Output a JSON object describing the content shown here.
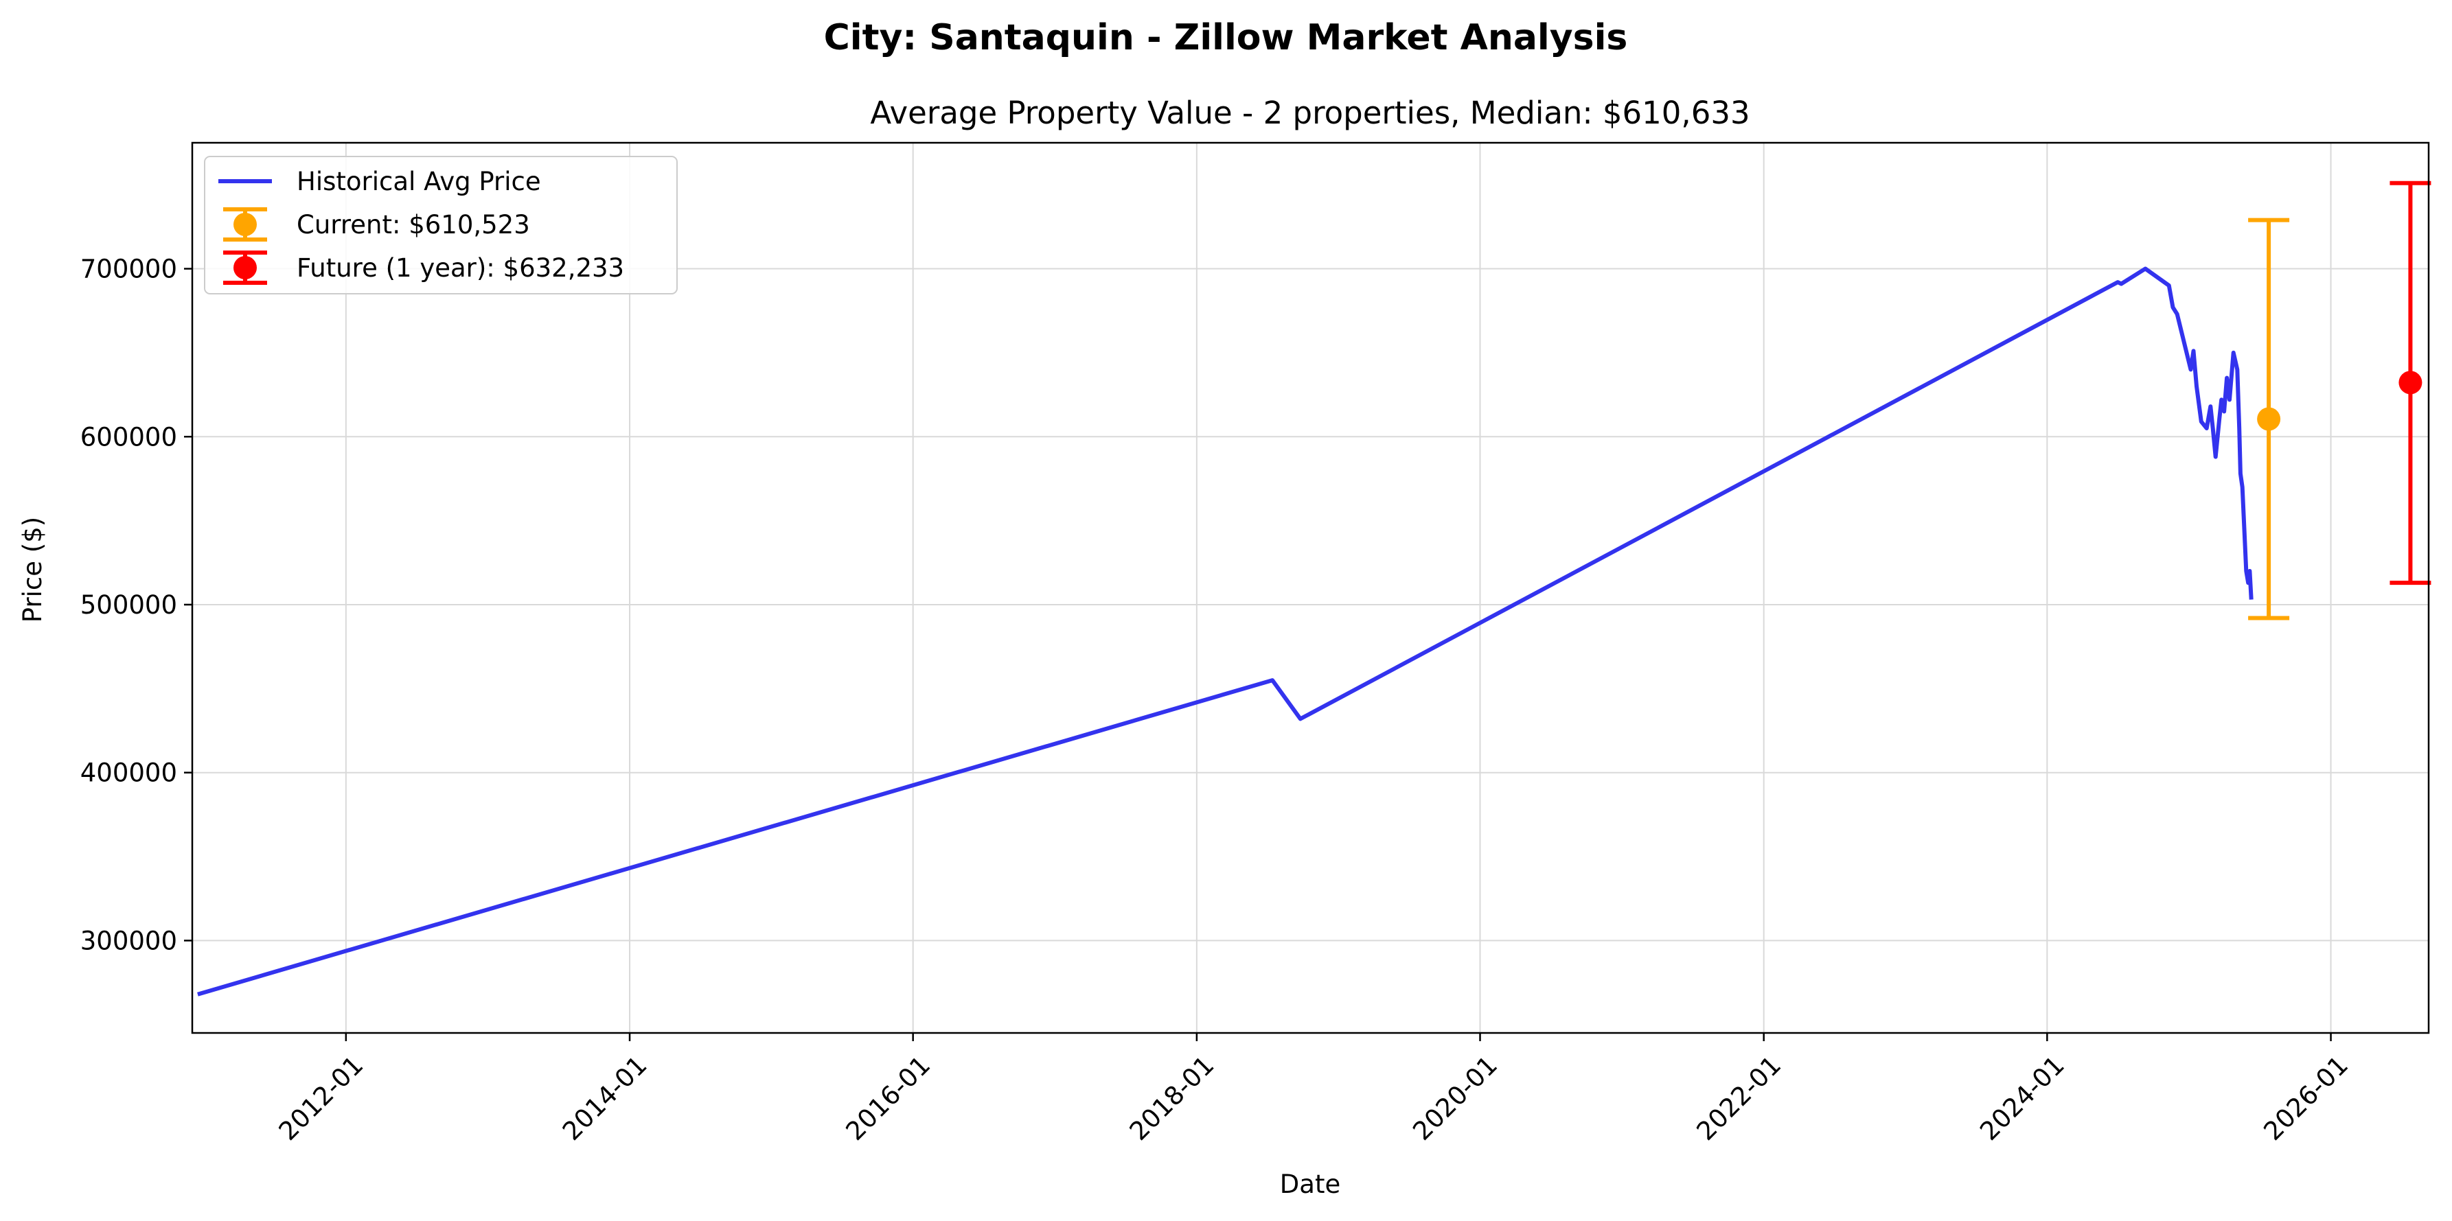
{
  "figure": {
    "suptitle": "City: Santaquin - Zillow Market Analysis"
  },
  "chart_data": {
    "type": "line",
    "title": "Average Property Value - 2 properties, Median: $610,633",
    "xlabel": "Date",
    "ylabel": "Price ($)",
    "x_axis": {
      "type": "date",
      "range": [
        "2010-12-01",
        "2026-09-10"
      ],
      "ticks": [
        "2012-01-01",
        "2014-01-01",
        "2016-01-01",
        "2018-01-01",
        "2020-01-01",
        "2022-01-01",
        "2024-01-01",
        "2026-01-01"
      ],
      "tick_labels": [
        "2012-01",
        "2014-01",
        "2016-01",
        "2018-01",
        "2020-01",
        "2022-01",
        "2024-01",
        "2026-01"
      ]
    },
    "y_axis": {
      "range": [
        245000,
        775000
      ],
      "ticks": [
        300000,
        400000,
        500000,
        600000,
        700000
      ],
      "tick_labels": [
        "300000",
        "400000",
        "500000",
        "600000",
        "700000"
      ]
    },
    "grid": true,
    "legend_position": "top-left",
    "series": [
      {
        "name": "Historical Avg Price",
        "kind": "line",
        "color": "#3333ee",
        "points": [
          {
            "x": "2010-12-15",
            "y": 268000
          },
          {
            "x": "2018-07-15",
            "y": 455000
          },
          {
            "x": "2018-09-25",
            "y": 432000
          },
          {
            "x": "2024-07-01",
            "y": 692000
          },
          {
            "x": "2024-07-10",
            "y": 691000
          },
          {
            "x": "2024-09-10",
            "y": 700000
          },
          {
            "x": "2024-11-10",
            "y": 690000
          },
          {
            "x": "2024-11-20",
            "y": 677000
          },
          {
            "x": "2024-12-01",
            "y": 673000
          },
          {
            "x": "2025-01-05",
            "y": 640000
          },
          {
            "x": "2025-01-12",
            "y": 651000
          },
          {
            "x": "2025-01-20",
            "y": 630000
          },
          {
            "x": "2025-02-01",
            "y": 609000
          },
          {
            "x": "2025-02-15",
            "y": 605000
          },
          {
            "x": "2025-02-25",
            "y": 618000
          },
          {
            "x": "2025-03-03",
            "y": 605000
          },
          {
            "x": "2025-03-10",
            "y": 588000
          },
          {
            "x": "2025-03-20",
            "y": 611000
          },
          {
            "x": "2025-03-25",
            "y": 622000
          },
          {
            "x": "2025-04-01",
            "y": 615000
          },
          {
            "x": "2025-04-08",
            "y": 635000
          },
          {
            "x": "2025-04-15",
            "y": 622000
          },
          {
            "x": "2025-04-25",
            "y": 650000
          },
          {
            "x": "2025-05-05",
            "y": 640000
          },
          {
            "x": "2025-05-10",
            "y": 605000
          },
          {
            "x": "2025-05-13",
            "y": 578000
          },
          {
            "x": "2025-05-18",
            "y": 570000
          },
          {
            "x": "2025-05-28",
            "y": 520000
          },
          {
            "x": "2025-06-02",
            "y": 513000
          },
          {
            "x": "2025-06-06",
            "y": 520000
          },
          {
            "x": "2025-06-10",
            "y": 503000
          }
        ]
      },
      {
        "name": "Current: $610,523",
        "kind": "errorbar",
        "color": "#ffa500",
        "x": "2025-07-25",
        "y": 610523,
        "lower": 492000,
        "upper": 729000
      },
      {
        "name": "Future (1 year): $632,233",
        "kind": "errorbar",
        "color": "#ff0000",
        "x": "2026-07-25",
        "y": 632233,
        "lower": 513000,
        "upper": 751000
      }
    ]
  }
}
